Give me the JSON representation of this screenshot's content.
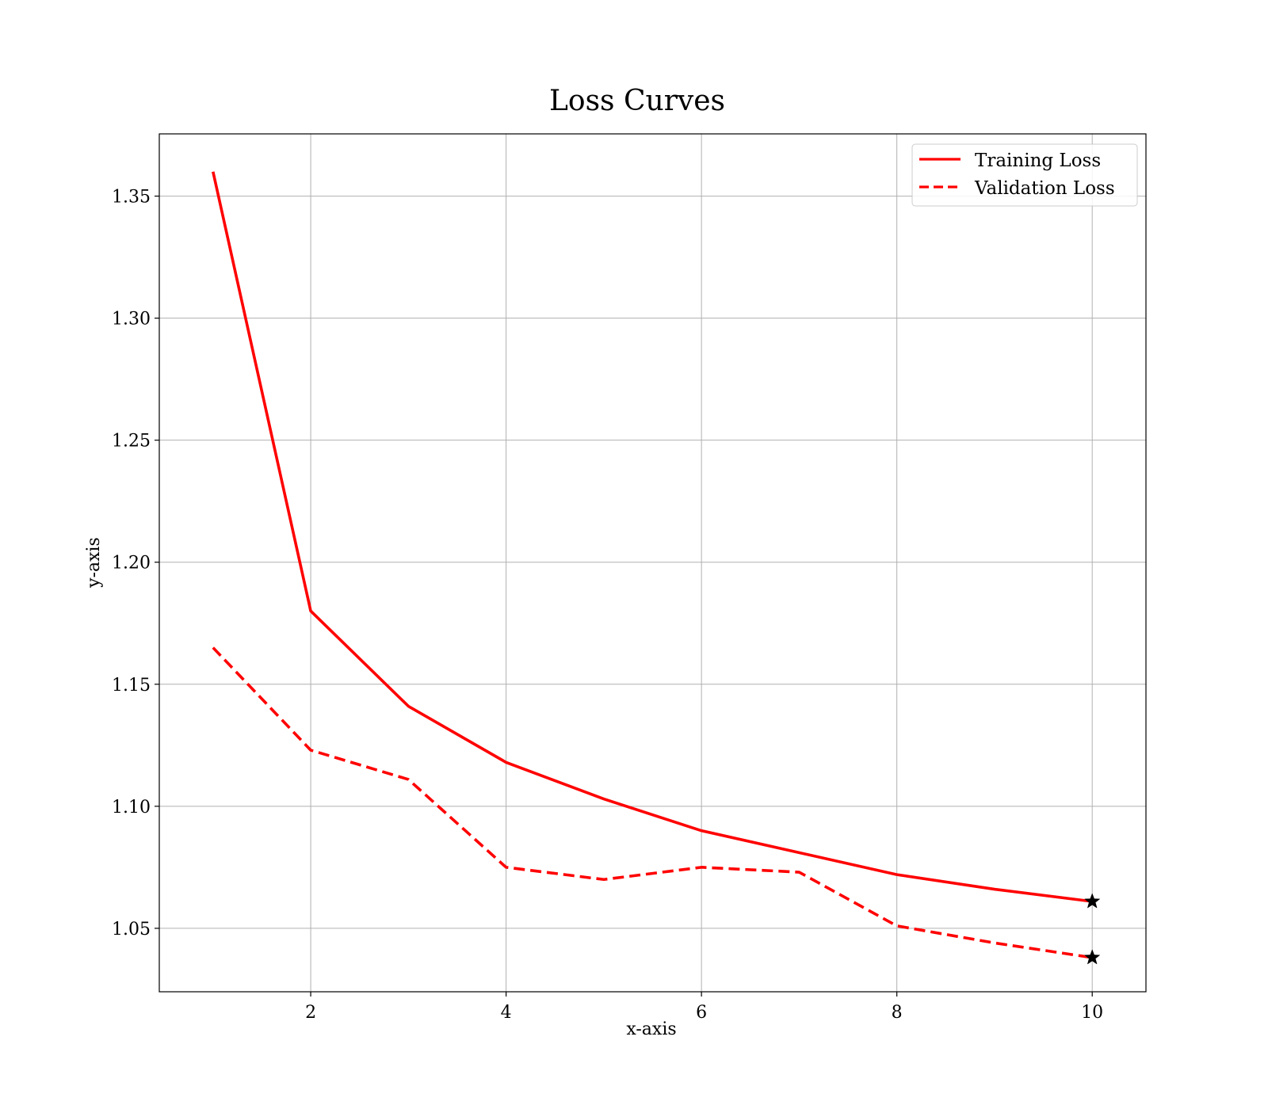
{
  "chart_data": {
    "type": "line",
    "title": "Loss Curves",
    "xlabel": "x-axis",
    "ylabel": "y-axis",
    "xlim": [
      0.45,
      10.55
    ],
    "ylim": [
      1.024,
      1.3755
    ],
    "xticks": [
      2,
      4,
      6,
      8,
      10
    ],
    "xtick_labels": [
      "2",
      "4",
      "6",
      "8",
      "10"
    ],
    "yticks": [
      1.05,
      1.1,
      1.15,
      1.2,
      1.25,
      1.3,
      1.35
    ],
    "ytick_labels": [
      "1.05",
      "1.10",
      "1.15",
      "1.20",
      "1.25",
      "1.30",
      "1.35"
    ],
    "grid": true,
    "legend_position": "top-right",
    "x": [
      1,
      2,
      3,
      4,
      5,
      6,
      7,
      8,
      9,
      10
    ],
    "series": [
      {
        "name": "Training Loss",
        "values": [
          1.36,
          1.18,
          1.141,
          1.118,
          1.103,
          1.09,
          1.081,
          1.072,
          1.066,
          1.061
        ],
        "color": "#ff0000",
        "style": "solid",
        "end_marker": "star"
      },
      {
        "name": "Validation Loss",
        "values": [
          1.165,
          1.123,
          1.111,
          1.075,
          1.07,
          1.075,
          1.073,
          1.051,
          1.044,
          1.038
        ],
        "color": "#ff0000",
        "style": "dashed",
        "end_marker": "star"
      }
    ],
    "marker_color": "#000000",
    "grid_color": "#b0b0b0"
  }
}
